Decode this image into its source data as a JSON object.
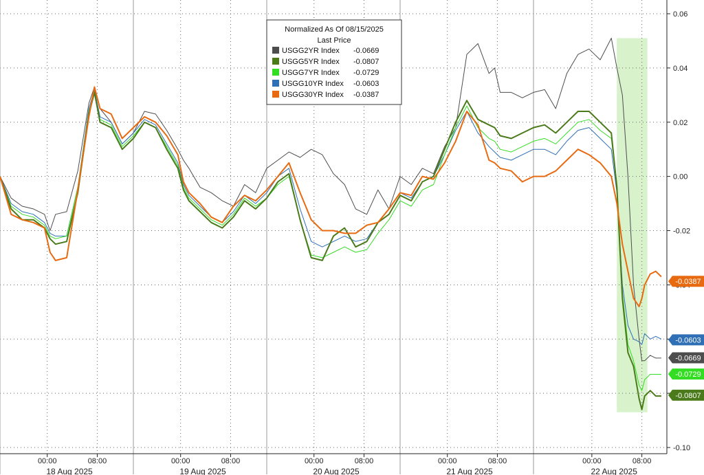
{
  "chart_data": {
    "type": "line",
    "title": "",
    "xlabel": "",
    "ylabel": "",
    "legend": {
      "header_line1": "Normalized As Of 08/15/2025",
      "header_line2": "Last Price",
      "placement": "top-center"
    },
    "ylim": [
      -0.1,
      0.06
    ],
    "yticks": [
      "0.06",
      "0.04",
      "0.02",
      "0.00",
      "-0.02",
      "-0.04",
      "-0.06",
      "-0.08",
      "-0.10"
    ],
    "xlim": [
      0,
      120
    ],
    "time_ticks": [
      {
        "x": 8.5,
        "label": "00:00"
      },
      {
        "x": 17.5,
        "label": "08:00"
      },
      {
        "x": 32.5,
        "label": "00:00"
      },
      {
        "x": 41.5,
        "label": "08:00"
      },
      {
        "x": 56.5,
        "label": "00:00"
      },
      {
        "x": 65.5,
        "label": "08:00"
      },
      {
        "x": 80.5,
        "label": "00:00"
      },
      {
        "x": 89.5,
        "label": "08:00"
      },
      {
        "x": 106.5,
        "label": "00:00"
      },
      {
        "x": 115.5,
        "label": "08:00"
      }
    ],
    "date_labels": [
      {
        "x": 12.5,
        "label": "18 Aug 2025"
      },
      {
        "x": 36.5,
        "label": "19 Aug 2025"
      },
      {
        "x": 60.5,
        "label": "20 Aug 2025"
      },
      {
        "x": 84.5,
        "label": "21 Aug 2025"
      },
      {
        "x": 110.5,
        "label": "22 Aug 2025"
      }
    ],
    "day_separators": [
      0,
      24,
      48,
      72,
      96
    ],
    "highlight": {
      "x_start": 111,
      "x_end": 116.5,
      "y_start": -0.087,
      "y_end": 0.051,
      "color": "#d8f2cc"
    },
    "x": [
      0,
      2,
      4,
      6,
      8,
      9,
      10,
      12,
      14,
      16,
      17,
      18,
      20,
      22,
      24,
      26,
      28,
      30,
      32,
      33,
      34,
      36,
      38,
      40,
      42,
      44,
      46,
      48,
      50,
      52,
      54,
      56,
      58,
      60,
      62,
      64,
      66,
      68,
      70,
      72,
      74,
      76,
      78,
      80,
      82,
      84,
      86,
      88,
      89,
      90,
      92,
      94,
      96,
      98,
      100,
      102,
      104,
      106,
      108,
      110,
      111,
      112,
      113,
      114,
      115,
      115.5,
      116,
      117,
      118,
      119
    ],
    "series": [
      {
        "name": "USGG2YR Index",
        "last": "-0.0669",
        "color": "#4d4d4d",
        "width": 1,
        "values": [
          0.0,
          -0.008,
          -0.011,
          -0.012,
          -0.014,
          -0.02,
          -0.014,
          -0.013,
          0.002,
          0.027,
          0.033,
          0.025,
          0.02,
          0.012,
          0.016,
          0.024,
          0.023,
          0.017,
          0.01,
          0.006,
          0.003,
          -0.004,
          -0.006,
          -0.009,
          -0.011,
          -0.003,
          -0.006,
          0.003,
          0.006,
          0.009,
          0.007,
          0.01,
          0.008,
          0.001,
          -0.003,
          -0.012,
          -0.014,
          -0.005,
          -0.012,
          0.0,
          -0.003,
          0.003,
          0.001,
          0.011,
          0.018,
          0.045,
          0.049,
          0.038,
          0.04,
          0.031,
          0.031,
          0.029,
          0.031,
          0.032,
          0.025,
          0.038,
          0.045,
          0.047,
          0.043,
          0.051,
          0.04,
          0.03,
          0.0,
          -0.04,
          -0.06,
          -0.068,
          -0.068,
          -0.066,
          -0.067,
          -0.067
        ]
      },
      {
        "name": "USGG5YR Index",
        "last": "-0.0807",
        "color": "#4a7a1a",
        "width": 2,
        "values": [
          0.0,
          -0.012,
          -0.016,
          -0.016,
          -0.019,
          -0.023,
          -0.025,
          -0.024,
          -0.006,
          0.023,
          0.031,
          0.02,
          0.018,
          0.01,
          0.014,
          0.02,
          0.018,
          0.01,
          0.003,
          -0.005,
          -0.009,
          -0.013,
          -0.017,
          -0.019,
          -0.015,
          -0.009,
          -0.012,
          -0.008,
          -0.002,
          0.001,
          -0.016,
          -0.03,
          -0.031,
          -0.022,
          -0.019,
          -0.026,
          -0.024,
          -0.017,
          -0.014,
          -0.007,
          -0.009,
          -0.002,
          0.0,
          0.01,
          0.02,
          0.028,
          0.021,
          0.019,
          0.018,
          0.015,
          0.014,
          0.016,
          0.018,
          0.019,
          0.016,
          0.02,
          0.024,
          0.024,
          0.02,
          0.016,
          -0.004,
          -0.045,
          -0.065,
          -0.07,
          -0.082,
          -0.086,
          -0.081,
          -0.079,
          -0.081,
          -0.081
        ]
      },
      {
        "name": "USGG7YR Index",
        "last": "-0.0729",
        "color": "#33dd22",
        "width": 1,
        "values": [
          0.0,
          -0.011,
          -0.014,
          -0.015,
          -0.018,
          -0.022,
          -0.023,
          -0.022,
          -0.004,
          0.024,
          0.031,
          0.021,
          0.019,
          0.011,
          0.015,
          0.02,
          0.018,
          0.011,
          0.004,
          -0.004,
          -0.008,
          -0.012,
          -0.016,
          -0.018,
          -0.014,
          -0.008,
          -0.011,
          -0.008,
          -0.003,
          0.0,
          -0.016,
          -0.029,
          -0.03,
          -0.028,
          -0.026,
          -0.028,
          -0.027,
          -0.021,
          -0.016,
          -0.009,
          -0.011,
          -0.005,
          -0.003,
          0.008,
          0.018,
          0.026,
          0.018,
          0.014,
          0.013,
          0.01,
          0.009,
          0.011,
          0.013,
          0.014,
          0.012,
          0.016,
          0.02,
          0.021,
          0.017,
          0.014,
          -0.004,
          -0.043,
          -0.062,
          -0.068,
          -0.077,
          -0.079,
          -0.075,
          -0.073,
          -0.073,
          -0.073
        ]
      },
      {
        "name": "USGG10YR Index",
        "last": "-0.0603",
        "color": "#2e6fb5",
        "width": 1,
        "values": [
          0.0,
          -0.01,
          -0.013,
          -0.014,
          -0.017,
          -0.021,
          -0.022,
          -0.022,
          -0.004,
          0.025,
          0.032,
          0.022,
          0.02,
          0.012,
          0.016,
          0.021,
          0.019,
          0.012,
          0.005,
          -0.003,
          -0.007,
          -0.011,
          -0.015,
          -0.017,
          -0.013,
          -0.007,
          -0.01,
          -0.006,
          0.0,
          0.003,
          -0.012,
          -0.024,
          -0.026,
          -0.024,
          -0.022,
          -0.024,
          -0.023,
          -0.017,
          -0.012,
          -0.006,
          -0.008,
          -0.002,
          0.0,
          0.008,
          0.017,
          0.024,
          0.016,
          0.011,
          0.009,
          0.007,
          0.006,
          0.008,
          0.01,
          0.01,
          0.008,
          0.013,
          0.017,
          0.018,
          0.014,
          0.01,
          -0.006,
          -0.04,
          -0.055,
          -0.06,
          -0.061,
          -0.062,
          -0.058,
          -0.06,
          -0.059,
          -0.06
        ]
      },
      {
        "name": "USGG30YR Index",
        "last": "-0.0387",
        "color": "#e86a10",
        "width": 2,
        "values": [
          0.0,
          -0.014,
          -0.016,
          -0.017,
          -0.019,
          -0.028,
          -0.031,
          -0.03,
          -0.005,
          0.022,
          0.033,
          0.025,
          0.023,
          0.014,
          0.018,
          0.022,
          0.02,
          0.015,
          0.008,
          -0.002,
          -0.006,
          -0.01,
          -0.015,
          -0.017,
          -0.011,
          -0.007,
          -0.009,
          -0.005,
          0.0,
          0.005,
          -0.006,
          -0.016,
          -0.02,
          -0.02,
          -0.021,
          -0.021,
          -0.018,
          -0.017,
          -0.012,
          -0.006,
          -0.007,
          0.0,
          -0.001,
          0.005,
          0.013,
          0.024,
          0.019,
          0.006,
          0.005,
          0.003,
          0.002,
          -0.002,
          0.0,
          0.0,
          0.002,
          0.006,
          0.01,
          0.008,
          0.005,
          0.0,
          -0.01,
          -0.025,
          -0.035,
          -0.045,
          -0.048,
          -0.045,
          -0.04,
          -0.036,
          -0.035,
          -0.037
        ]
      }
    ]
  }
}
